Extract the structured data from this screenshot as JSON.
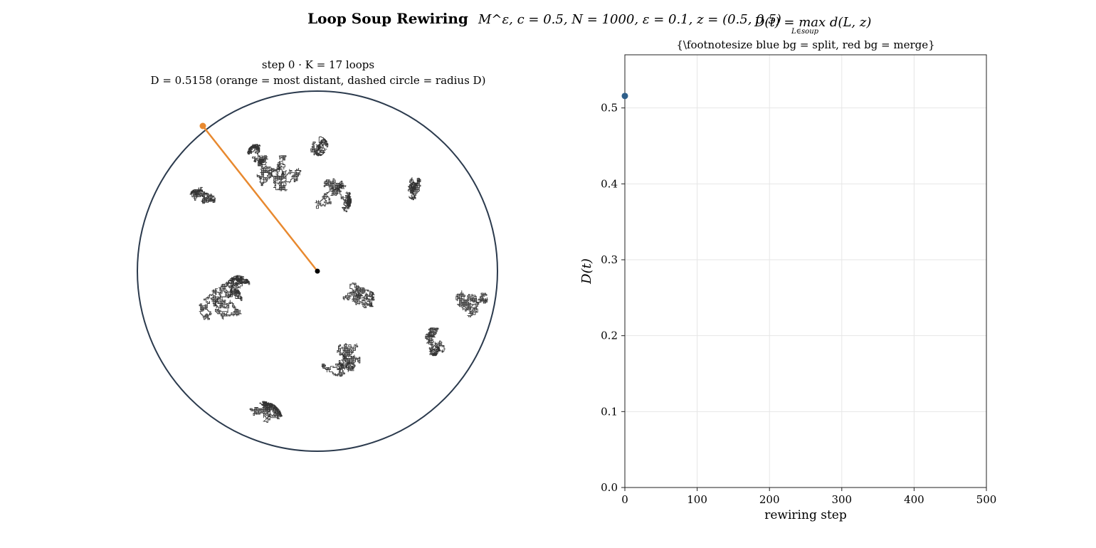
{
  "figure": {
    "title": "Loop Soup Rewiring",
    "title_params": "M^ε,   c = 0.5,   N = 1000,   ε = 0.1,   z = (0.5, 0.5)",
    "overlay_formula": "D(t) = max d(L, z)",
    "overlay_formula_sub": "L∈soup"
  },
  "left_panel": {
    "title_line1": "step 0   ·   K = 17 loops",
    "title_line2": "D = 0.5158   (orange = most distant,  dashed circle = radius D)",
    "colors": {
      "circle": "#2b3a4d",
      "loops": "#333333",
      "distance_line": "#e8892f",
      "center": "#000000"
    }
  },
  "chart_data": {
    "type": "scatter",
    "title": "{\\footnotesize blue bg = split,  red bg = merge}",
    "xlabel": "rewiring step",
    "ylabel": "D(t)",
    "xlim": [
      0,
      500
    ],
    "ylim": [
      0,
      0.57
    ],
    "xticks": [
      0,
      100,
      200,
      300,
      400,
      500
    ],
    "yticks": [
      0.0,
      0.1,
      0.2,
      0.3,
      0.4,
      0.5
    ],
    "ytick_labels": [
      "0.0",
      "0.1",
      "0.2",
      "0.3",
      "0.4",
      "0.5"
    ],
    "grid": true,
    "series": [
      {
        "x": [
          0
        ],
        "y": [
          0.5158
        ],
        "color": "#2f5f8a"
      }
    ]
  }
}
